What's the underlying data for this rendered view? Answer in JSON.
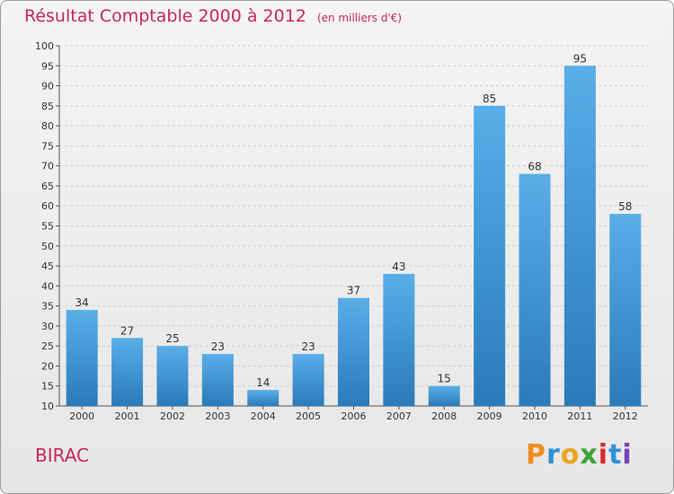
{
  "chart_data": {
    "type": "bar",
    "title": "Résultat Comptable 2000 à 2012",
    "subtitle": "(en milliers d'€)",
    "categories": [
      "2000",
      "2001",
      "2002",
      "2003",
      "2004",
      "2005",
      "2006",
      "2007",
      "2008",
      "2009",
      "2010",
      "2011",
      "2012"
    ],
    "values": [
      34,
      27,
      25,
      23,
      14,
      23,
      37,
      43,
      15,
      85,
      68,
      95,
      58
    ],
    "ylim": [
      10,
      100
    ],
    "yticks": [
      10,
      15,
      20,
      25,
      30,
      35,
      40,
      45,
      50,
      55,
      60,
      65,
      70,
      75,
      80,
      85,
      90,
      95,
      100
    ],
    "grid": true,
    "xlabel": "",
    "ylabel": "",
    "bar_color_top": "#5aaee8",
    "bar_color_bottom": "#2a7bb8"
  },
  "commune": "BIRAC",
  "brand": "Proxiti",
  "brand_letters": [
    "P",
    "r",
    "o",
    "x",
    "i",
    "t",
    "i"
  ]
}
